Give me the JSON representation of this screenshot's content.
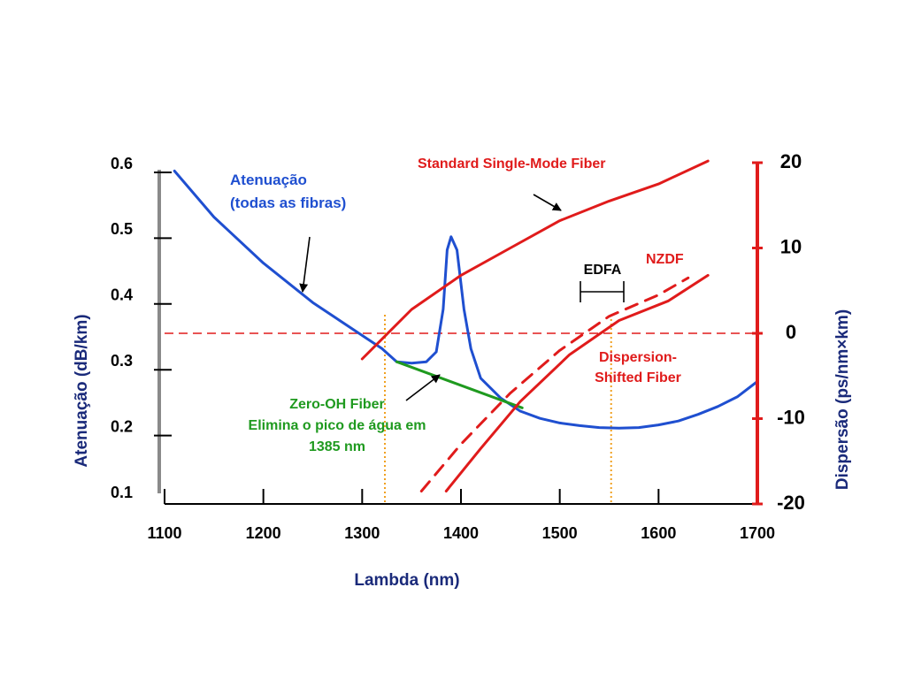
{
  "colors": {
    "attenuation": "#1f4fd0",
    "dispersion": "#e01b1b",
    "zero_oh": "#1f9a1f",
    "left_axis": "#8a8a8a",
    "axis_title": "#1a2a7a",
    "edfa_line": "#f0a020",
    "text": "#000000"
  },
  "chart_data": {
    "type": "line",
    "x": {
      "label": "Lambda (nm)",
      "range": [
        1100,
        1700
      ],
      "ticks": [
        1100,
        1200,
        1300,
        1400,
        1500,
        1600,
        1700
      ]
    },
    "y_left": {
      "label": "Atenuação (dB/km)",
      "range": [
        0.1,
        0.6
      ],
      "ticks": [
        0.1,
        0.2,
        0.3,
        0.4,
        0.5,
        0.6
      ]
    },
    "y_right": {
      "label": "Dispersão (ps/nm×km)",
      "range": [
        -20,
        20
      ],
      "ticks": [
        -20,
        -10,
        0,
        10,
        20
      ]
    },
    "series": [
      {
        "axis": "left",
        "style": "solid",
        "color": "attenuation",
        "points": [
          [
            1110,
            0.59
          ],
          [
            1150,
            0.52
          ],
          [
            1200,
            0.45
          ],
          [
            1250,
            0.39
          ],
          [
            1300,
            0.34
          ],
          [
            1320,
            0.32
          ],
          [
            1335,
            0.3
          ],
          [
            1350,
            0.298
          ],
          [
            1365,
            0.3
          ],
          [
            1375,
            0.315
          ],
          [
            1382,
            0.38
          ],
          [
            1386,
            0.47
          ],
          [
            1390,
            0.49
          ],
          [
            1396,
            0.47
          ],
          [
            1403,
            0.38
          ],
          [
            1410,
            0.32
          ],
          [
            1420,
            0.275
          ],
          [
            1440,
            0.245
          ],
          [
            1460,
            0.225
          ],
          [
            1480,
            0.214
          ],
          [
            1500,
            0.207
          ],
          [
            1520,
            0.203
          ],
          [
            1540,
            0.2
          ],
          [
            1560,
            0.199
          ],
          [
            1580,
            0.2
          ],
          [
            1600,
            0.204
          ],
          [
            1620,
            0.21
          ],
          [
            1640,
            0.22
          ],
          [
            1660,
            0.232
          ],
          [
            1680,
            0.247
          ],
          [
            1700,
            0.27
          ]
        ]
      },
      {
        "axis": "left",
        "style": "solid",
        "color": "zero_oh",
        "points": [
          [
            1335,
            0.3
          ],
          [
            1462,
            0.23
          ]
        ]
      },
      {
        "axis": "right",
        "style": "solid",
        "color": "dispersion",
        "points": [
          [
            1300,
            -3
          ],
          [
            1350,
            2.8
          ],
          [
            1400,
            6.8
          ],
          [
            1450,
            10
          ],
          [
            1500,
            13.2
          ],
          [
            1550,
            15.5
          ],
          [
            1600,
            17.5
          ],
          [
            1650,
            20.2
          ]
        ]
      },
      {
        "axis": "right",
        "style": "dashed",
        "color": "dispersion",
        "points": [
          [
            1360,
            -18.5
          ],
          [
            1400,
            -13
          ],
          [
            1450,
            -7
          ],
          [
            1500,
            -2
          ],
          [
            1550,
            2
          ],
          [
            1600,
            4.5
          ],
          [
            1630,
            6.5
          ]
        ]
      },
      {
        "axis": "right",
        "style": "solid",
        "color": "dispersion",
        "points": [
          [
            1385,
            -18.5
          ],
          [
            1420,
            -13.5
          ],
          [
            1460,
            -8
          ],
          [
            1510,
            -2.5
          ],
          [
            1560,
            1.5
          ],
          [
            1610,
            3.8
          ],
          [
            1650,
            6.8
          ]
        ]
      }
    ],
    "reference_lines": [
      {
        "orientation": "horizontal",
        "axis": "right",
        "value": 0,
        "style": "dashed",
        "color": "dispersion"
      },
      {
        "orientation": "vertical",
        "value": 1323,
        "style": "dotted",
        "color": "edfa_line"
      },
      {
        "orientation": "vertical",
        "value": 1552,
        "style": "dotted",
        "color": "edfa_line"
      }
    ],
    "edfa_band": {
      "label": "EDFA",
      "from": 1520,
      "to": 1565
    },
    "annotations": {
      "attenuation": {
        "line1": "Atenuação",
        "line2": "(todas as fibras)"
      },
      "ssmf": "Standard Single-Mode Fiber",
      "nzdf": "NZDF",
      "dsf": {
        "line1": "Dispersion-",
        "line2": "Shifted Fiber"
      },
      "zero_oh": {
        "line1": "Zero-OH Fiber",
        "line2": "Elimina o pico de água em",
        "line3": "1385 nm"
      }
    }
  }
}
